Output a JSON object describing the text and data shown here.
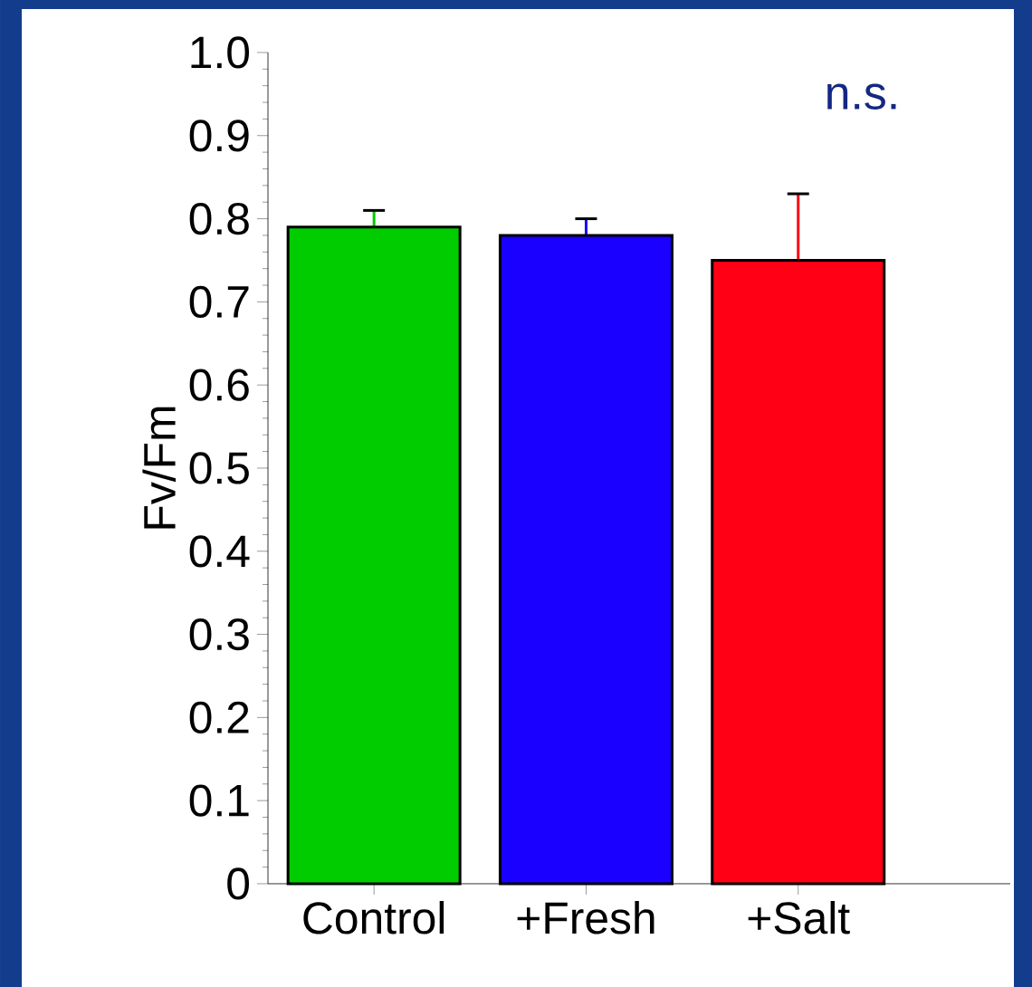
{
  "chart_data": {
    "type": "bar",
    "ylabel": "Fv/Fm",
    "categories": [
      "Control",
      "+Fresh",
      "+Salt"
    ],
    "values": [
      0.79,
      0.78,
      0.75
    ],
    "errors": [
      0.02,
      0.02,
      0.08
    ],
    "colors": [
      "#00cc00",
      "#1a00ff",
      "#ff0015"
    ],
    "ylim": [
      0,
      1.0
    ],
    "yticks": [
      {
        "value": 0,
        "label": "0"
      },
      {
        "value": 0.1,
        "label": "0.1"
      },
      {
        "value": 0.2,
        "label": "0.2"
      },
      {
        "value": 0.3,
        "label": "0.3"
      },
      {
        "value": 0.4,
        "label": "0.4"
      },
      {
        "value": 0.5,
        "label": "0.5"
      },
      {
        "value": 0.6,
        "label": "0.6"
      },
      {
        "value": 0.7,
        "label": "0.7"
      },
      {
        "value": 0.8,
        "label": "0.8"
      },
      {
        "value": 0.9,
        "label": "0.9"
      },
      {
        "value": 1.0,
        "label": "1.0"
      }
    ],
    "annotations": [
      "n.s."
    ],
    "grid": false
  }
}
